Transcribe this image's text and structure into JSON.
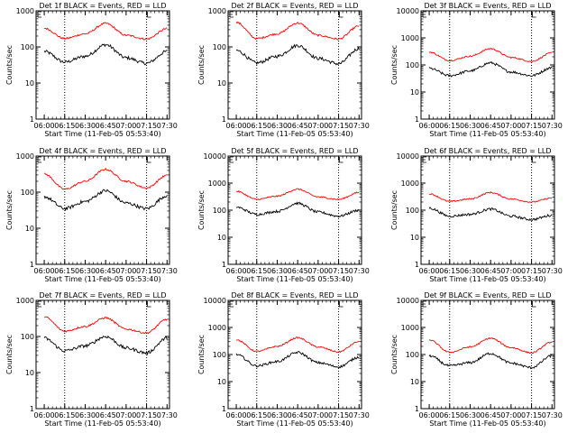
{
  "chart_data": [
    {
      "type": "line",
      "title": "Det 1f BLACK = Events, RED = LLD",
      "xlabel": "Start Time (11-Feb-05 05:53:40)",
      "ylabel": "Counts/sec",
      "ylim": [
        1,
        1000
      ],
      "yticks": [
        "1",
        "10",
        "100",
        "1000"
      ],
      "xticks": [
        "06:00",
        "06:15",
        "06:30",
        "06:45",
        "07:00",
        "07:15",
        "07:30"
      ],
      "markers": [
        "06:15",
        "07:15"
      ],
      "series": [
        {
          "name": "Events",
          "color": "#000000",
          "x": [
            6.0,
            6.25,
            6.5,
            6.75,
            7.0,
            7.25,
            7.5
          ],
          "values": [
            75,
            38,
            55,
            115,
            50,
            35,
            75
          ]
        },
        {
          "name": "LLD",
          "color": "#ff0000",
          "x": [
            6.0,
            6.25,
            6.5,
            6.75,
            7.0,
            7.25,
            7.5
          ],
          "values": [
            330,
            170,
            230,
            450,
            210,
            165,
            320
          ]
        }
      ]
    },
    {
      "type": "line",
      "title": "Det 2f BLACK = Events, RED = LLD",
      "xlabel": "Start Time (11-Feb-05 05:53:40)",
      "ylabel": "Counts/sec",
      "ylim": [
        1,
        1000
      ],
      "yticks": [
        "1",
        "10",
        "100",
        "1000"
      ],
      "xticks": [
        "06:00",
        "06:15",
        "06:30",
        "06:45",
        "07:00",
        "07:15",
        "07:30"
      ],
      "markers": [
        "06:15",
        "07:15"
      ],
      "series": [
        {
          "name": "Events",
          "color": "#000000",
          "x": [
            6.0,
            6.25,
            6.5,
            6.75,
            7.0,
            7.25,
            7.5
          ],
          "values": [
            80,
            36,
            55,
            110,
            48,
            34,
            90
          ]
        },
        {
          "name": "LLD",
          "color": "#ff0000",
          "x": [
            6.0,
            6.25,
            6.5,
            6.75,
            7.0,
            7.25,
            7.5
          ],
          "values": [
            480,
            170,
            230,
            460,
            210,
            165,
            380
          ]
        }
      ]
    },
    {
      "type": "line",
      "title": "Det 3f BLACK = Events, RED = LLD",
      "xlabel": "Start Time (11-Feb-05 05:53:40)",
      "ylabel": "Counts/sec",
      "ylim": [
        1,
        10000
      ],
      "yticks": [
        "1",
        "10",
        "100",
        "1000",
        "10000"
      ],
      "xticks": [
        "06:00",
        "06:15",
        "06:30",
        "06:45",
        "07:00",
        "07:15",
        "07:30"
      ],
      "markers": [
        "06:15",
        "07:15"
      ],
      "series": [
        {
          "name": "Events",
          "color": "#000000",
          "x": [
            6.0,
            6.25,
            6.5,
            6.75,
            7.0,
            7.25,
            7.5
          ],
          "values": [
            75,
            40,
            60,
            120,
            55,
            40,
            80
          ]
        },
        {
          "name": "LLD",
          "color": "#ff0000",
          "x": [
            6.0,
            6.25,
            6.5,
            6.75,
            7.0,
            7.25,
            7.5
          ],
          "values": [
            300,
            145,
            210,
            400,
            190,
            135,
            280
          ]
        }
      ]
    },
    {
      "type": "line",
      "title": "Det 4f BLACK = Events, RED = LLD",
      "xlabel": "Start Time (11-Feb-05 05:53:40)",
      "ylabel": "Counts/sec",
      "ylim": [
        1,
        1000
      ],
      "yticks": [
        "1",
        "10",
        "100",
        "1000"
      ],
      "xticks": [
        "06:00",
        "06:15",
        "06:30",
        "06:45",
        "07:00",
        "07:15",
        "07:30"
      ],
      "markers": [
        "06:15",
        "07:15"
      ],
      "series": [
        {
          "name": "Events",
          "color": "#000000",
          "x": [
            6.0,
            6.25,
            6.5,
            6.75,
            7.0,
            7.25,
            7.5
          ],
          "values": [
            75,
            35,
            55,
            110,
            50,
            35,
            80
          ]
        },
        {
          "name": "LLD",
          "color": "#ff0000",
          "x": [
            6.0,
            6.25,
            6.5,
            6.75,
            7.0,
            7.25,
            7.5
          ],
          "values": [
            320,
            120,
            200,
            430,
            200,
            130,
            290
          ]
        }
      ]
    },
    {
      "type": "line",
      "title": "Det 5f BLACK = Events, RED = LLD",
      "xlabel": "Start Time (11-Feb-05 05:53:40)",
      "ylabel": "Counts/sec",
      "ylim": [
        1,
        10000
      ],
      "yticks": [
        "1",
        "10",
        "100",
        "1000",
        "10000"
      ],
      "xticks": [
        "06:00",
        "06:15",
        "06:30",
        "06:45",
        "07:00",
        "07:15",
        "07:30"
      ],
      "markers": [
        "06:15",
        "07:15"
      ],
      "series": [
        {
          "name": "Events",
          "color": "#000000",
          "x": [
            6.0,
            6.25,
            6.5,
            6.75,
            7.0,
            7.25,
            7.5
          ],
          "values": [
            130,
            70,
            90,
            180,
            85,
            60,
            100
          ]
        },
        {
          "name": "LLD",
          "color": "#ff0000",
          "x": [
            6.0,
            6.25,
            6.5,
            6.75,
            7.0,
            7.25,
            7.5
          ],
          "values": [
            500,
            250,
            330,
            600,
            310,
            250,
            450
          ]
        }
      ]
    },
    {
      "type": "line",
      "title": "Det 6f BLACK = Events, RED = LLD",
      "xlabel": "Start Time (11-Feb-05 05:53:40)",
      "ylabel": "Counts/sec",
      "ylim": [
        1,
        10000
      ],
      "yticks": [
        "1",
        "10",
        "100",
        "1000",
        "10000"
      ],
      "xticks": [
        "06:00",
        "06:15",
        "06:30",
        "06:45",
        "07:00",
        "07:15",
        "07:30"
      ],
      "markers": [
        "06:15",
        "07:15"
      ],
      "series": [
        {
          "name": "Events",
          "color": "#000000",
          "x": [
            6.0,
            6.25,
            6.5,
            6.75,
            7.0,
            7.25,
            7.5
          ],
          "values": [
            120,
            60,
            70,
            110,
            60,
            45,
            65
          ]
        },
        {
          "name": "LLD",
          "color": "#ff0000",
          "x": [
            6.0,
            6.25,
            6.5,
            6.75,
            7.0,
            7.25,
            7.5
          ],
          "values": [
            400,
            210,
            260,
            450,
            260,
            200,
            280
          ]
        }
      ]
    },
    {
      "type": "line",
      "title": "Det 7f BLACK = Events, RED = LLD",
      "xlabel": "Start Time (11-Feb-05 05:53:40)",
      "ylabel": "Counts/sec",
      "ylim": [
        1,
        1000
      ],
      "yticks": [
        "1",
        "10",
        "100",
        "1000"
      ],
      "xticks": [
        "06:00",
        "06:15",
        "06:30",
        "06:45",
        "07:00",
        "07:15",
        "07:30"
      ],
      "markers": [
        "06:15",
        "07:15"
      ],
      "series": [
        {
          "name": "Events",
          "color": "#000000",
          "x": [
            6.0,
            6.25,
            6.5,
            6.75,
            7.0,
            7.25,
            7.5
          ],
          "values": [
            90,
            40,
            55,
            100,
            48,
            35,
            90
          ]
        },
        {
          "name": "LLD",
          "color": "#ff0000",
          "x": [
            6.0,
            6.25,
            6.5,
            6.75,
            7.0,
            7.25,
            7.5
          ],
          "values": [
            350,
            140,
            190,
            330,
            160,
            125,
            300
          ]
        }
      ]
    },
    {
      "type": "line",
      "title": "Det 8f BLACK = Events, RED = LLD",
      "xlabel": "Start Time (11-Feb-05 05:53:40)",
      "ylabel": "Counts/sec",
      "ylim": [
        1,
        10000
      ],
      "yticks": [
        "1",
        "10",
        "100",
        "1000",
        "10000"
      ],
      "xticks": [
        "06:00",
        "06:15",
        "06:30",
        "06:45",
        "07:00",
        "07:15",
        "07:30"
      ],
      "markers": [
        "06:15",
        "07:15"
      ],
      "series": [
        {
          "name": "Events",
          "color": "#000000",
          "x": [
            6.0,
            6.25,
            6.5,
            6.75,
            7.0,
            7.25,
            7.5
          ],
          "values": [
            100,
            38,
            55,
            120,
            50,
            35,
            80
          ]
        },
        {
          "name": "LLD",
          "color": "#ff0000",
          "x": [
            6.0,
            6.25,
            6.5,
            6.75,
            7.0,
            7.25,
            7.5
          ],
          "values": [
            350,
            130,
            200,
            420,
            190,
            125,
            300
          ]
        }
      ]
    },
    {
      "type": "line",
      "title": "Det 9f BLACK = Events, RED = LLD",
      "xlabel": "Start Time (11-Feb-05 05:53:40)",
      "ylabel": "Counts/sec",
      "ylim": [
        1,
        10000
      ],
      "yticks": [
        "1",
        "10",
        "100",
        "1000",
        "10000"
      ],
      "xticks": [
        "06:00",
        "06:15",
        "06:30",
        "06:45",
        "07:00",
        "07:15",
        "07:30"
      ],
      "markers": [
        "06:15",
        "07:15"
      ],
      "series": [
        {
          "name": "Events",
          "color": "#000000",
          "x": [
            6.0,
            6.25,
            6.5,
            6.75,
            7.0,
            7.25,
            7.5
          ],
          "values": [
            90,
            38,
            50,
            110,
            48,
            33,
            90
          ]
        },
        {
          "name": "LLD",
          "color": "#ff0000",
          "x": [
            6.0,
            6.25,
            6.5,
            6.75,
            7.0,
            7.25,
            7.5
          ],
          "values": [
            350,
            120,
            190,
            400,
            180,
            115,
            290
          ]
        }
      ]
    }
  ]
}
